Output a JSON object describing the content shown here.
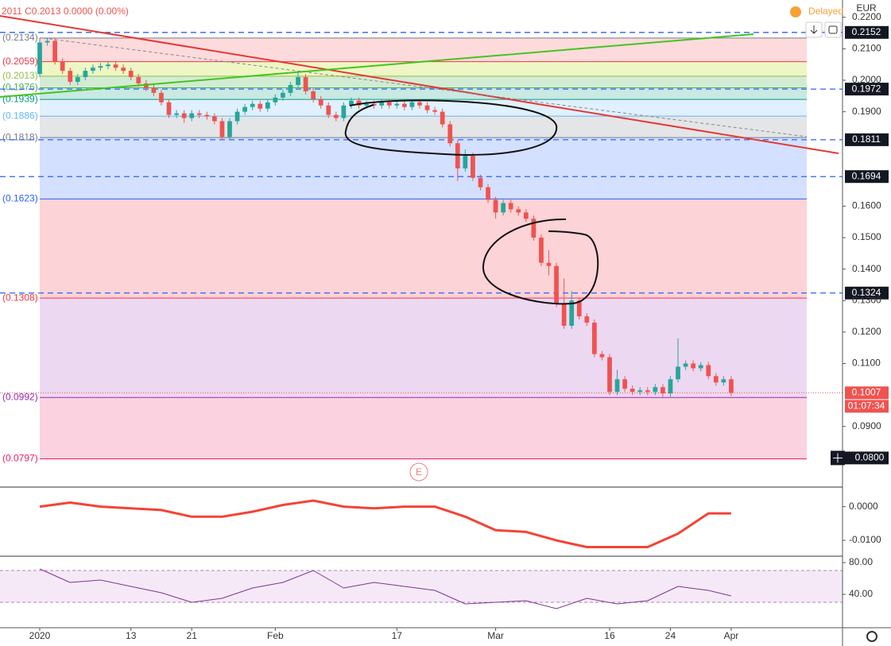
{
  "chart_data": {
    "type": "candlestick",
    "header": "2011 C0.2013 0.0000 (0.00%)",
    "status": "Delayed",
    "currency": "EUR",
    "earnings_marker": "E",
    "up_color": "#26a69a",
    "down_color": "#ef5350",
    "xlim": [
      -5.23,
      105.65
    ],
    "xticks": [
      {
        "value": 0,
        "label": "2020"
      },
      {
        "value": 12,
        "label": "13"
      },
      {
        "value": 20,
        "label": "21"
      },
      {
        "value": 31,
        "label": "Feb"
      },
      {
        "value": 47,
        "label": "17"
      },
      {
        "value": 60,
        "label": "Mar"
      },
      {
        "value": 75,
        "label": "16"
      },
      {
        "value": 83,
        "label": "24"
      },
      {
        "value": 91,
        "label": "Apr"
      }
    ],
    "ylim": [
      0.071,
      0.2255
    ],
    "yticks": [
      {
        "value": 0.22,
        "label": "0.2200"
      },
      {
        "value": 0.21,
        "label": "0.2100"
      },
      {
        "value": 0.2,
        "label": "0.2000"
      },
      {
        "value": 0.19,
        "label": "0.1900"
      },
      {
        "value": 0.16,
        "label": "0.1600"
      },
      {
        "value": 0.15,
        "label": "0.1500"
      },
      {
        "value": 0.14,
        "label": "0.1400"
      },
      {
        "value": 0.13,
        "label": "0.1300"
      },
      {
        "value": 0.12,
        "label": "0.1200"
      },
      {
        "value": 0.11,
        "label": "0.1100"
      },
      {
        "value": 0.09,
        "label": "0.0900"
      }
    ],
    "open": [
      0.202,
      0.212,
      0.2125,
      0.206,
      0.203,
      0.1995,
      0.201,
      0.203,
      0.204,
      0.2045,
      0.205,
      0.204,
      0.203,
      0.201,
      0.199,
      0.1975,
      0.196,
      0.193,
      0.189,
      0.1895,
      0.188,
      0.1895,
      0.189,
      0.1885,
      0.187,
      0.182,
      0.187,
      0.19,
      0.1915,
      0.1925,
      0.191,
      0.193,
      0.1945,
      0.196,
      0.1985,
      0.201,
      0.1965,
      0.194,
      0.192,
      0.189,
      0.188,
      0.192,
      0.1935,
      0.192,
      0.1925,
      0.192,
      0.193,
      0.192,
      0.1925,
      0.1915,
      0.193,
      0.192,
      0.1905,
      0.19,
      0.186,
      0.18,
      0.172,
      0.176,
      0.169,
      0.166,
      0.162,
      0.158,
      0.161,
      0.159,
      0.158,
      0.156,
      0.15,
      0.142,
      0.141,
      0.129,
      0.122,
      0.13,
      0.125,
      0.123,
      0.113,
      0.112,
      0.101,
      0.105,
      0.102,
      0.101,
      0.1015,
      0.101,
      0.1025,
      0.1005,
      0.105,
      0.109,
      0.11,
      0.1085,
      0.1095,
      0.106,
      0.104,
      0.105
    ],
    "high": [
      0.2134,
      0.2134,
      0.2135,
      0.207,
      0.204,
      0.202,
      0.204,
      0.205,
      0.2055,
      0.206,
      0.2058,
      0.205,
      0.204,
      0.202,
      0.2,
      0.1985,
      0.197,
      0.194,
      0.1905,
      0.1905,
      0.1905,
      0.1905,
      0.19,
      0.1895,
      0.188,
      0.188,
      0.191,
      0.1925,
      0.1935,
      0.1935,
      0.194,
      0.1955,
      0.197,
      0.1995,
      0.2025,
      0.202,
      0.1975,
      0.195,
      0.193,
      0.19,
      0.193,
      0.1945,
      0.1945,
      0.1935,
      0.1935,
      0.194,
      0.194,
      0.1935,
      0.1935,
      0.194,
      0.194,
      0.193,
      0.1915,
      0.191,
      0.187,
      0.181,
      0.178,
      0.177,
      0.17,
      0.167,
      0.163,
      0.162,
      0.162,
      0.16,
      0.159,
      0.157,
      0.151,
      0.146,
      0.142,
      0.137,
      0.133,
      0.131,
      0.126,
      0.124,
      0.114,
      0.113,
      0.108,
      0.106,
      0.103,
      0.1025,
      0.1025,
      0.1035,
      0.1035,
      0.106,
      0.118,
      0.111,
      0.111,
      0.1105,
      0.1105,
      0.107,
      0.106,
      0.106
    ],
    "low": [
      0.201,
      0.211,
      0.205,
      0.202,
      0.1985,
      0.1985,
      0.2,
      0.202,
      0.203,
      0.2035,
      0.203,
      0.202,
      0.2,
      0.198,
      0.1965,
      0.195,
      0.192,
      0.188,
      0.188,
      0.1865,
      0.187,
      0.188,
      0.1875,
      0.186,
      0.181,
      0.181,
      0.186,
      0.189,
      0.1905,
      0.19,
      0.19,
      0.192,
      0.1935,
      0.195,
      0.1975,
      0.1955,
      0.193,
      0.191,
      0.188,
      0.187,
      0.187,
      0.191,
      0.191,
      0.191,
      0.191,
      0.191,
      0.191,
      0.191,
      0.1905,
      0.1905,
      0.191,
      0.1895,
      0.189,
      0.185,
      0.179,
      0.168,
      0.171,
      0.168,
      0.165,
      0.161,
      0.156,
      0.157,
      0.158,
      0.157,
      0.155,
      0.149,
      0.141,
      0.138,
      0.128,
      0.121,
      0.121,
      0.124,
      0.122,
      0.112,
      0.111,
      0.1,
      0.1,
      0.101,
      0.1,
      0.1,
      0.1,
      0.1,
      0.0995,
      0.0995,
      0.104,
      0.108,
      0.1075,
      0.1075,
      0.105,
      0.103,
      0.103,
      0.0997
    ],
    "close": [
      0.212,
      0.2125,
      0.206,
      0.203,
      0.1995,
      0.201,
      0.203,
      0.204,
      0.2045,
      0.205,
      0.204,
      0.203,
      0.201,
      0.199,
      0.1975,
      0.196,
      0.193,
      0.189,
      0.1895,
      0.188,
      0.1895,
      0.189,
      0.1885,
      0.187,
      0.182,
      0.187,
      0.19,
      0.1915,
      0.1925,
      0.191,
      0.193,
      0.1945,
      0.196,
      0.1985,
      0.201,
      0.1965,
      0.194,
      0.192,
      0.189,
      0.188,
      0.192,
      0.1935,
      0.192,
      0.1925,
      0.192,
      0.193,
      0.192,
      0.1925,
      0.1915,
      0.193,
      0.192,
      0.1905,
      0.19,
      0.186,
      0.18,
      0.172,
      0.176,
      0.169,
      0.166,
      0.162,
      0.158,
      0.161,
      0.159,
      0.158,
      0.156,
      0.15,
      0.142,
      0.141,
      0.129,
      0.122,
      0.13,
      0.125,
      0.123,
      0.113,
      0.112,
      0.101,
      0.105,
      0.102,
      0.101,
      0.1015,
      0.101,
      0.1025,
      0.1005,
      0.105,
      0.109,
      0.11,
      0.1085,
      0.1095,
      0.106,
      0.104,
      0.105,
      0.1007
    ],
    "levels": [
      {
        "value": 0.2134,
        "label": "(0.2134)",
        "color": "#787b86",
        "zone": "rgba(242,54,69,0.18)"
      },
      {
        "value": 0.2059,
        "label": "(0.2059)",
        "color": "#f23645",
        "zone": "rgba(205,230,90,0.35)"
      },
      {
        "value": 0.2013,
        "label": "(0.2013)",
        "color": "#8bc34a",
        "zone": "rgba(129,199,132,0.35)"
      },
      {
        "value": 0.1976,
        "label": "(0.1976)",
        "color": "#4caf50",
        "zone": "rgba(8,153,129,0.22)"
      },
      {
        "value": 0.1939,
        "label": "(0.1939)",
        "color": "#089981",
        "zone": "rgba(100,181,246,0.2)"
      },
      {
        "value": 0.1886,
        "label": "(0.1886)",
        "color": "#64b5f6",
        "zone": "rgba(120,123,134,0.2)"
      },
      {
        "value": 0.1818,
        "label": "(0.1818)",
        "color": "#787b86",
        "zone": "rgba(41,98,255,0.2)"
      },
      {
        "value": 0.1623,
        "label": "(0.1623)",
        "color": "#2962ff",
        "zone": "rgba(242,54,69,0.22)"
      },
      {
        "value": 0.1308,
        "label": "(0.1308)",
        "color": "#f23645",
        "zone": "rgba(156,39,176,0.18)"
      },
      {
        "value": 0.0992,
        "label": "(0.0992)",
        "color": "#9c27b0",
        "zone": "rgba(233,30,99,0.2)"
      },
      {
        "value": 0.0797,
        "label": "(0.0797)",
        "color": "#e91e63"
      }
    ],
    "price_lines": [
      0.2152,
      0.1972,
      0.1811,
      0.1694,
      0.1324
    ],
    "price_line_color": "#2962ff",
    "last_price": {
      "value": 0.1007,
      "label": "0.1007"
    },
    "countdown": "01:07:34",
    "crosshair_price": {
      "value": 0.08,
      "label": "0.0800"
    },
    "macd": {
      "ylim": [
        -0.0147,
        0.0058
      ],
      "yticks": [
        {
          "value": 0,
          "label": "0.0000"
        },
        {
          "value": -0.01,
          "label": "-0.0100"
        }
      ],
      "color": "#f44336",
      "x": [
        0,
        4,
        8,
        12,
        16,
        20,
        24,
        28,
        32,
        36,
        40,
        44,
        48,
        52,
        56,
        60,
        64,
        68,
        72,
        76,
        80,
        84,
        88,
        91
      ],
      "values": [
        0.0,
        0.0012,
        0.0,
        -0.0005,
        -0.001,
        -0.003,
        -0.003,
        -0.0015,
        0.0005,
        0.0018,
        0.0,
        -0.0005,
        0.0,
        0.0,
        -0.003,
        -0.007,
        -0.0075,
        -0.01,
        -0.012,
        -0.012,
        -0.012,
        -0.008,
        -0.002,
        -0.002
      ]
    },
    "rsi": {
      "ylim": [
        -2,
        88
      ],
      "yticks": [
        {
          "value": 80,
          "label": "80.00"
        },
        {
          "value": 40,
          "label": "40.00"
        }
      ],
      "color": "#7e3794",
      "x": [
        0,
        4,
        8,
        12,
        16,
        20,
        24,
        28,
        32,
        36,
        40,
        44,
        48,
        52,
        56,
        60,
        64,
        68,
        72,
        76,
        80,
        84,
        88,
        91
      ],
      "values": [
        72,
        55,
        58,
        50,
        42,
        30,
        35,
        48,
        55,
        70,
        48,
        55,
        50,
        45,
        28,
        30,
        32,
        22,
        35,
        28,
        32,
        50,
        45,
        38
      ]
    }
  }
}
